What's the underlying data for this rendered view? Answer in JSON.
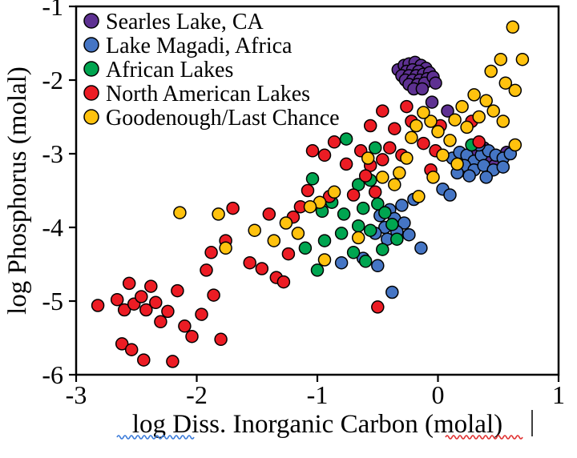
{
  "chart_data": {
    "type": "scatter",
    "title": "",
    "xlabel": "log Diss. Inorganic Carbon (molal)",
    "ylabel": "log Phosphorus (molal)",
    "xlim": [
      -3,
      1
    ],
    "ylim": [
      -6,
      -1
    ],
    "xticks": [
      -3,
      -2,
      -1,
      0,
      1
    ],
    "yticks": [
      -1,
      -2,
      -3,
      -4,
      -5,
      -6
    ],
    "grid": false,
    "legend_position": "upper-left",
    "marker": "circle",
    "series": [
      {
        "name": "Searles Lake, CA",
        "color": "#5E3192",
        "points": [
          [
            -0.33,
            -1.86
          ],
          [
            -0.28,
            -1.8
          ],
          [
            -0.24,
            -1.78
          ],
          [
            -0.19,
            -1.76
          ],
          [
            -0.14,
            -1.8
          ],
          [
            -0.1,
            -1.84
          ],
          [
            -0.26,
            -1.88
          ],
          [
            -0.21,
            -1.86
          ],
          [
            -0.16,
            -1.88
          ],
          [
            -0.3,
            -1.94
          ],
          [
            -0.24,
            -1.94
          ],
          [
            -0.18,
            -1.94
          ],
          [
            -0.12,
            -1.92
          ],
          [
            -0.07,
            -1.9
          ],
          [
            -0.27,
            -2.0
          ],
          [
            -0.21,
            -2.0
          ],
          [
            -0.15,
            -2.0
          ],
          [
            -0.09,
            -1.98
          ],
          [
            -0.24,
            -2.06
          ],
          [
            -0.17,
            -2.06
          ],
          [
            -0.11,
            -2.04
          ],
          [
            -0.04,
            -1.96
          ],
          [
            -0.02,
            -2.04
          ],
          [
            -0.2,
            -2.12
          ],
          [
            -0.13,
            -2.12
          ],
          [
            -0.05,
            -2.3
          ],
          [
            0.08,
            -2.42
          ],
          [
            0.3,
            -2.98
          ],
          [
            0.38,
            -2.92
          ],
          [
            0.44,
            -3.04
          ],
          [
            0.52,
            -3.08
          ],
          [
            0.57,
            -2.98
          ],
          [
            0.47,
            -3.16
          ]
        ]
      },
      {
        "name": "Lake Magadi, Africa",
        "color": "#4575C4",
        "points": [
          [
            0.12,
            -3.06
          ],
          [
            0.18,
            -2.98
          ],
          [
            0.24,
            -3.02
          ],
          [
            0.3,
            -3.1
          ],
          [
            0.36,
            -3.02
          ],
          [
            0.42,
            -2.96
          ],
          [
            0.48,
            -3.02
          ],
          [
            0.54,
            -3.06
          ],
          [
            0.6,
            -3.0
          ],
          [
            0.22,
            -3.16
          ],
          [
            0.3,
            -3.22
          ],
          [
            0.38,
            -3.16
          ],
          [
            0.46,
            -3.22
          ],
          [
            0.54,
            -3.18
          ],
          [
            0.26,
            -3.3
          ],
          [
            0.4,
            -3.32
          ],
          [
            0.16,
            -3.26
          ],
          [
            0.34,
            -2.88
          ],
          [
            0.04,
            -3.48
          ],
          [
            0.1,
            -3.56
          ],
          [
            -0.2,
            -3.62
          ],
          [
            -0.3,
            -3.7
          ],
          [
            -0.4,
            -3.76
          ],
          [
            -0.48,
            -3.84
          ],
          [
            -0.36,
            -3.88
          ],
          [
            -0.28,
            -3.94
          ],
          [
            -0.44,
            -4.0
          ],
          [
            -0.34,
            -4.06
          ],
          [
            -0.24,
            -4.1
          ],
          [
            -0.52,
            -4.08
          ],
          [
            -0.42,
            -4.16
          ],
          [
            -0.8,
            -4.48
          ],
          [
            -0.62,
            -4.42
          ],
          [
            -0.5,
            -4.52
          ],
          [
            -0.38,
            -4.88
          ],
          [
            -0.14,
            -4.28
          ]
        ]
      },
      {
        "name": "African Lakes",
        "color": "#00A550",
        "points": [
          [
            -0.76,
            -2.8
          ],
          [
            -0.52,
            -2.92
          ],
          [
            0.28,
            -2.88
          ],
          [
            -1.04,
            -3.34
          ],
          [
            -0.66,
            -3.42
          ],
          [
            -0.56,
            -3.36
          ],
          [
            -0.88,
            -3.66
          ],
          [
            -0.96,
            -3.78
          ],
          [
            -0.78,
            -3.82
          ],
          [
            -0.62,
            -3.74
          ],
          [
            -0.5,
            -3.68
          ],
          [
            -0.44,
            -3.8
          ],
          [
            -0.66,
            -3.98
          ],
          [
            -0.56,
            -4.04
          ],
          [
            -0.8,
            -4.08
          ],
          [
            -0.94,
            -4.18
          ],
          [
            -1.1,
            -4.28
          ],
          [
            -0.7,
            -4.34
          ],
          [
            -0.6,
            -4.46
          ],
          [
            -1.0,
            -4.58
          ],
          [
            -0.38,
            -3.96
          ],
          [
            -0.34,
            -4.16
          ],
          [
            -0.46,
            -4.3
          ]
        ]
      },
      {
        "name": "North American Lakes",
        "color": "#EC1C24",
        "points": [
          [
            -2.82,
            -5.06
          ],
          [
            -2.66,
            -4.98
          ],
          [
            -2.6,
            -5.12
          ],
          [
            -2.52,
            -5.04
          ],
          [
            -2.46,
            -4.94
          ],
          [
            -2.42,
            -5.12
          ],
          [
            -2.56,
            -4.76
          ],
          [
            -2.38,
            -4.8
          ],
          [
            -2.34,
            -5.02
          ],
          [
            -2.62,
            -5.58
          ],
          [
            -2.54,
            -5.66
          ],
          [
            -2.3,
            -5.28
          ],
          [
            -2.24,
            -5.14
          ],
          [
            -2.16,
            -4.86
          ],
          [
            -2.1,
            -5.34
          ],
          [
            -2.04,
            -5.48
          ],
          [
            -1.96,
            -5.18
          ],
          [
            -1.86,
            -4.92
          ],
          [
            -1.8,
            -5.52
          ],
          [
            -2.2,
            -5.82
          ],
          [
            -2.44,
            -5.8
          ],
          [
            -1.92,
            -4.58
          ],
          [
            -1.88,
            -4.34
          ],
          [
            -1.76,
            -4.18
          ],
          [
            -1.7,
            -3.74
          ],
          [
            -1.56,
            -4.48
          ],
          [
            -1.46,
            -4.56
          ],
          [
            -1.4,
            -3.82
          ],
          [
            -1.34,
            -4.68
          ],
          [
            -1.28,
            -4.74
          ],
          [
            -1.2,
            -3.86
          ],
          [
            -1.14,
            -3.72
          ],
          [
            -1.24,
            -4.36
          ],
          [
            -1.08,
            -3.5
          ],
          [
            -1.04,
            -2.96
          ],
          [
            -0.94,
            -3.02
          ],
          [
            -0.86,
            -2.84
          ],
          [
            -0.9,
            -3.58
          ],
          [
            -0.76,
            -3.14
          ],
          [
            -0.7,
            -3.56
          ],
          [
            -0.64,
            -2.96
          ],
          [
            -0.56,
            -3.16
          ],
          [
            -0.6,
            -3.3
          ],
          [
            -0.52,
            -3.52
          ],
          [
            -0.46,
            -3.08
          ],
          [
            -0.56,
            -2.62
          ],
          [
            -0.46,
            -2.42
          ],
          [
            -0.36,
            -2.66
          ],
          [
            -0.4,
            -2.92
          ],
          [
            -0.3,
            -3.02
          ],
          [
            -0.5,
            -5.08
          ],
          [
            -0.22,
            -2.56
          ],
          [
            -0.12,
            -2.86
          ],
          [
            -0.02,
            -2.96
          ],
          [
            -0.06,
            -3.22
          ],
          [
            0.28,
            -2.56
          ],
          [
            0.34,
            -2.84
          ],
          [
            -0.26,
            -2.36
          ],
          [
            0.02,
            -2.62
          ]
        ]
      },
      {
        "name": "Goodenough/Last Chance",
        "color": "#FFC20E",
        "points": [
          [
            0.62,
            -1.28
          ],
          [
            0.52,
            -1.72
          ],
          [
            0.7,
            -1.72
          ],
          [
            0.44,
            -1.88
          ],
          [
            0.56,
            -2.04
          ],
          [
            0.64,
            -2.14
          ],
          [
            0.4,
            -2.28
          ],
          [
            0.3,
            -2.2
          ],
          [
            0.2,
            -2.36
          ],
          [
            0.34,
            -2.5
          ],
          [
            0.24,
            -2.64
          ],
          [
            0.14,
            -2.54
          ],
          [
            0.54,
            -2.56
          ],
          [
            0.64,
            -2.88
          ],
          [
            0.1,
            -2.82
          ],
          [
            0.04,
            -3.02
          ],
          [
            0.0,
            -2.7
          ],
          [
            -0.06,
            -2.56
          ],
          [
            -0.12,
            -2.44
          ],
          [
            -0.18,
            -2.62
          ],
          [
            -0.22,
            -2.78
          ],
          [
            0.16,
            -3.14
          ],
          [
            -0.04,
            -3.32
          ],
          [
            -0.26,
            -3.06
          ],
          [
            -0.32,
            -3.26
          ],
          [
            -0.36,
            -3.42
          ],
          [
            -0.16,
            -3.58
          ],
          [
            -0.46,
            -3.32
          ],
          [
            -0.58,
            -3.06
          ],
          [
            -0.86,
            -3.52
          ],
          [
            -0.98,
            -3.66
          ],
          [
            -1.06,
            -3.72
          ],
          [
            -1.16,
            -4.08
          ],
          [
            -1.26,
            -3.94
          ],
          [
            -1.36,
            -4.18
          ],
          [
            -1.76,
            -4.28
          ],
          [
            -1.82,
            -3.82
          ],
          [
            -2.14,
            -3.8
          ],
          [
            -1.52,
            -4.04
          ],
          [
            -0.66,
            -4.14
          ],
          [
            -0.94,
            -4.44
          ],
          [
            0.46,
            -2.42
          ]
        ]
      }
    ]
  }
}
